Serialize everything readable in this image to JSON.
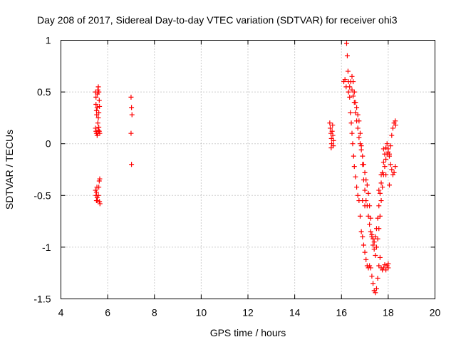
{
  "chart_data": {
    "type": "scatter",
    "title": "Day 208 of 2017, Sidereal Day-to-day VTEC variation (SDTVAR) for receiver ohi3",
    "xlabel": "GPS time / hours",
    "ylabel": "SDTVAR / TECUs",
    "xlim": [
      4,
      20
    ],
    "ylim": [
      -1.5,
      1
    ],
    "xticks": [
      4,
      6,
      8,
      10,
      12,
      14,
      16,
      18,
      20
    ],
    "xtick_labels": [
      "4",
      "6",
      "8",
      "10",
      "12",
      "14",
      "16",
      "18",
      "20"
    ],
    "yticks": [
      -1.5,
      -1,
      -0.5,
      0,
      0.5,
      1
    ],
    "ytick_labels": [
      "-1.5",
      "-1",
      "-0.5",
      "0",
      "0.5",
      "1"
    ],
    "grid": true,
    "marker": "+",
    "series_color": "#ff0000",
    "series": [
      {
        "name": "SDTVAR",
        "points": [
          [
            5.48,
            0.5
          ],
          [
            5.5,
            0.45
          ],
          [
            5.5,
            0.38
          ],
          [
            5.52,
            0.32
          ],
          [
            5.53,
            0.28
          ],
          [
            5.55,
            0.35
          ],
          [
            5.56,
            0.48
          ],
          [
            5.58,
            0.52
          ],
          [
            5.6,
            0.55
          ],
          [
            5.62,
            0.5
          ],
          [
            5.64,
            0.42
          ],
          [
            5.65,
            0.36
          ],
          [
            5.62,
            0.3
          ],
          [
            5.6,
            0.25
          ],
          [
            5.58,
            0.2
          ],
          [
            5.48,
            0.15
          ],
          [
            5.5,
            0.12
          ],
          [
            5.52,
            0.1
          ],
          [
            5.55,
            0.08
          ],
          [
            5.58,
            0.1
          ],
          [
            5.6,
            0.13
          ],
          [
            5.62,
            0.16
          ],
          [
            5.64,
            0.12
          ],
          [
            5.66,
            0.1
          ],
          [
            5.48,
            -0.45
          ],
          [
            5.5,
            -0.5
          ],
          [
            5.52,
            -0.47
          ],
          [
            5.54,
            -0.42
          ],
          [
            5.55,
            -0.52
          ],
          [
            5.57,
            -0.55
          ],
          [
            5.6,
            -0.5
          ],
          [
            5.62,
            -0.42
          ],
          [
            5.64,
            -0.36
          ],
          [
            5.66,
            -0.34
          ],
          [
            5.65,
            -0.56
          ],
          [
            5.67,
            -0.58
          ],
          [
            5.52,
            -0.55
          ],
          [
            7.0,
            0.45
          ],
          [
            7.02,
            0.35
          ],
          [
            7.04,
            0.28
          ],
          [
            7.0,
            0.1
          ],
          [
            7.02,
            -0.2
          ],
          [
            15.5,
            0.2
          ],
          [
            15.52,
            0.15
          ],
          [
            15.55,
            0.1
          ],
          [
            15.57,
            0.05
          ],
          [
            15.58,
            0.0
          ],
          [
            15.56,
            -0.04
          ],
          [
            15.6,
            0.12
          ],
          [
            15.62,
            0.18
          ],
          [
            15.63,
            0.08
          ],
          [
            15.65,
            -0.02
          ],
          [
            15.66,
            0.03
          ],
          [
            16.1,
            0.6
          ],
          [
            16.15,
            0.62
          ],
          [
            16.2,
            0.55
          ],
          [
            16.22,
            0.97
          ],
          [
            16.25,
            0.85
          ],
          [
            16.28,
            0.7
          ],
          [
            16.3,
            0.6
          ],
          [
            16.35,
            0.45
          ],
          [
            16.38,
            0.3
          ],
          [
            16.42,
            0.2
          ],
          [
            16.45,
            0.1
          ],
          [
            16.48,
            0.0
          ],
          [
            16.52,
            -0.12
          ],
          [
            16.55,
            -0.22
          ],
          [
            16.6,
            -0.32
          ],
          [
            16.65,
            -0.42
          ],
          [
            16.7,
            -0.5
          ],
          [
            16.75,
            -0.55
          ],
          [
            16.8,
            -0.7
          ],
          [
            16.85,
            -0.85
          ],
          [
            16.9,
            -0.9
          ],
          [
            16.95,
            -0.98
          ],
          [
            17.0,
            -1.05
          ],
          [
            17.05,
            -1.12
          ],
          [
            17.1,
            -1.18
          ],
          [
            17.15,
            -1.2
          ],
          [
            17.2,
            -1.18
          ],
          [
            17.25,
            -1.2
          ],
          [
            17.3,
            -1.28
          ],
          [
            17.35,
            -1.35
          ],
          [
            17.4,
            -1.42
          ],
          [
            17.45,
            -1.44
          ],
          [
            17.5,
            -1.4
          ],
          [
            17.55,
            -1.3
          ],
          [
            17.6,
            -1.18
          ],
          [
            17.65,
            -1.1
          ],
          [
            17.7,
            -1.2
          ],
          [
            17.75,
            -1.22
          ],
          [
            17.8,
            -1.2
          ],
          [
            17.85,
            -1.17
          ],
          [
            17.9,
            -1.22
          ],
          [
            17.95,
            -1.18
          ],
          [
            18.0,
            -1.16
          ],
          [
            16.4,
            0.6
          ],
          [
            16.45,
            0.52
          ],
          [
            16.5,
            0.46
          ],
          [
            16.55,
            0.4
          ],
          [
            16.6,
            0.3
          ],
          [
            16.65,
            0.22
          ],
          [
            16.7,
            0.15
          ],
          [
            16.75,
            0.06
          ],
          [
            16.8,
            0.0
          ],
          [
            16.85,
            -0.06
          ],
          [
            16.9,
            -0.12
          ],
          [
            16.95,
            -0.2
          ],
          [
            17.0,
            -0.28
          ],
          [
            17.05,
            -0.35
          ],
          [
            17.1,
            -0.4
          ],
          [
            17.15,
            -0.48
          ],
          [
            17.2,
            -0.6
          ],
          [
            17.25,
            -0.72
          ],
          [
            17.3,
            -0.88
          ],
          [
            17.35,
            -0.98
          ],
          [
            17.4,
            -1.02
          ],
          [
            17.45,
            -1.08
          ],
          [
            17.5,
            -1.0
          ],
          [
            17.55,
            -0.92
          ],
          [
            17.6,
            -0.82
          ],
          [
            17.65,
            -0.7
          ],
          [
            17.7,
            -0.55
          ],
          [
            17.75,
            -0.42
          ],
          [
            17.8,
            -0.3
          ],
          [
            17.85,
            -0.22
          ],
          [
            17.9,
            -0.15
          ],
          [
            17.95,
            -0.1
          ],
          [
            18.0,
            -0.08
          ],
          [
            18.05,
            -0.12
          ],
          [
            18.1,
            -0.2
          ],
          [
            18.15,
            -0.25
          ],
          [
            18.2,
            -0.3
          ],
          [
            18.25,
            -0.28
          ],
          [
            18.3,
            -0.22
          ],
          [
            16.6,
            0.4
          ],
          [
            16.65,
            0.35
          ],
          [
            16.7,
            0.28
          ],
          [
            16.75,
            0.22
          ],
          [
            16.8,
            0.1
          ],
          [
            16.85,
            -0.02
          ],
          [
            16.9,
            -0.2
          ],
          [
            16.95,
            -0.35
          ],
          [
            17.0,
            -0.45
          ],
          [
            17.05,
            -0.55
          ],
          [
            17.1,
            -0.6
          ],
          [
            17.15,
            -0.7
          ],
          [
            17.2,
            -0.78
          ],
          [
            17.25,
            -0.85
          ],
          [
            17.3,
            -0.9
          ],
          [
            17.35,
            -0.92
          ],
          [
            17.4,
            -0.95
          ],
          [
            17.45,
            -0.9
          ],
          [
            17.5,
            -0.82
          ],
          [
            17.55,
            -0.72
          ],
          [
            17.6,
            -0.6
          ],
          [
            17.65,
            -0.48
          ],
          [
            17.7,
            -0.38
          ],
          [
            17.75,
            -0.28
          ],
          [
            17.8,
            -0.18
          ],
          [
            17.85,
            -0.1
          ],
          [
            17.9,
            -0.04
          ],
          [
            17.95,
            0.0
          ],
          [
            18.0,
            -0.05
          ],
          [
            18.05,
            -0.1
          ],
          [
            18.1,
            -0.02
          ],
          [
            18.15,
            0.08
          ],
          [
            18.2,
            0.15
          ],
          [
            18.25,
            0.2
          ],
          [
            18.3,
            0.22
          ],
          [
            18.32,
            0.18
          ],
          [
            16.3,
            0.5
          ],
          [
            16.35,
            0.55
          ],
          [
            16.45,
            0.65
          ],
          [
            16.5,
            0.6
          ],
          [
            16.55,
            0.5
          ],
          [
            16.9,
            -0.55
          ],
          [
            17.0,
            -0.6
          ],
          [
            17.6,
            -0.45
          ],
          [
            17.7,
            -0.3
          ],
          [
            17.8,
            -0.05
          ],
          [
            17.9,
            -0.3
          ],
          [
            18.05,
            -0.4
          ],
          [
            18.0,
            -1.2
          ]
        ]
      }
    ]
  }
}
